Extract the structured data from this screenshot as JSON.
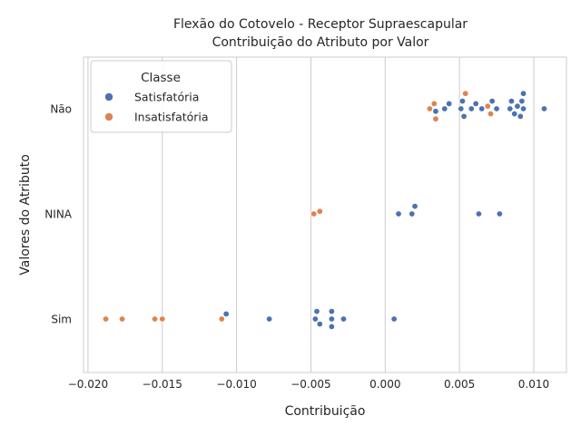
{
  "chart_data": {
    "type": "scatter",
    "title": "Flexão do Cotovelo - Receptor Supraescapular",
    "subtitle": "Contribuição do Atributo por Valor",
    "xlabel": "Contribuição",
    "ylabel": "Valores do Atributo",
    "categories": [
      "Não",
      "NINA",
      "Sim"
    ],
    "xlim": [
      -0.0203,
      0.0122
    ],
    "xticks": [
      -0.02,
      -0.015,
      -0.01,
      -0.005,
      0.0,
      0.005,
      0.01
    ],
    "xtick_labels": [
      "−0.020",
      "−0.015",
      "−0.010",
      "−0.005",
      "0.000",
      "0.005",
      "0.010"
    ],
    "grid": "vertical",
    "legend": {
      "title": "Classe",
      "placement": "top-left",
      "entries": [
        "Satisfatória",
        "Insatisfatória"
      ]
    },
    "colors": {
      "Satisfatória": "#4c72b0",
      "Insatisfatória": "#dd8452",
      "grid": "#cccccc",
      "spine": "#cccccc"
    },
    "series": [
      {
        "name": "Satisfatória",
        "points": [
          {
            "x": 0.0034,
            "y": "Não"
          },
          {
            "x": 0.004,
            "y": "Não"
          },
          {
            "x": 0.0043,
            "y": "Não"
          },
          {
            "x": 0.0051,
            "y": "Não"
          },
          {
            "x": 0.0052,
            "y": "Não"
          },
          {
            "x": 0.0053,
            "y": "Não"
          },
          {
            "x": 0.0058,
            "y": "Não"
          },
          {
            "x": 0.0061,
            "y": "Não"
          },
          {
            "x": 0.0065,
            "y": "Não"
          },
          {
            "x": 0.0072,
            "y": "Não"
          },
          {
            "x": 0.0075,
            "y": "Não"
          },
          {
            "x": 0.0084,
            "y": "Não"
          },
          {
            "x": 0.0085,
            "y": "Não"
          },
          {
            "x": 0.0087,
            "y": "Não"
          },
          {
            "x": 0.0089,
            "y": "Não"
          },
          {
            "x": 0.0091,
            "y": "Não"
          },
          {
            "x": 0.0092,
            "y": "Não"
          },
          {
            "x": 0.0093,
            "y": "Não"
          },
          {
            "x": 0.0093,
            "y": "Não"
          },
          {
            "x": 0.0107,
            "y": "Não"
          },
          {
            "x": 0.0009,
            "y": "NINA"
          },
          {
            "x": 0.0018,
            "y": "NINA"
          },
          {
            "x": 0.002,
            "y": "NINA"
          },
          {
            "x": 0.0063,
            "y": "NINA"
          },
          {
            "x": 0.0077,
            "y": "NINA"
          },
          {
            "x": -0.0107,
            "y": "Sim"
          },
          {
            "x": -0.0078,
            "y": "Sim"
          },
          {
            "x": -0.0047,
            "y": "Sim"
          },
          {
            "x": -0.0046,
            "y": "Sim"
          },
          {
            "x": -0.0044,
            "y": "Sim"
          },
          {
            "x": -0.0036,
            "y": "Sim"
          },
          {
            "x": -0.0036,
            "y": "Sim"
          },
          {
            "x": -0.0036,
            "y": "Sim"
          },
          {
            "x": -0.0028,
            "y": "Sim"
          },
          {
            "x": 0.0006,
            "y": "Sim"
          }
        ]
      },
      {
        "name": "Insatisfatória",
        "points": [
          {
            "x": 0.003,
            "y": "Não"
          },
          {
            "x": 0.0033,
            "y": "Não"
          },
          {
            "x": 0.0034,
            "y": "Não"
          },
          {
            "x": 0.0054,
            "y": "Não"
          },
          {
            "x": 0.0069,
            "y": "Não"
          },
          {
            "x": 0.0071,
            "y": "Não"
          },
          {
            "x": -0.0048,
            "y": "NINA"
          },
          {
            "x": -0.0044,
            "y": "NINA"
          },
          {
            "x": -0.0188,
            "y": "Sim"
          },
          {
            "x": -0.0177,
            "y": "Sim"
          },
          {
            "x": -0.0155,
            "y": "Sim"
          },
          {
            "x": -0.015,
            "y": "Sim"
          },
          {
            "x": -0.011,
            "y": "Sim"
          }
        ]
      }
    ]
  }
}
